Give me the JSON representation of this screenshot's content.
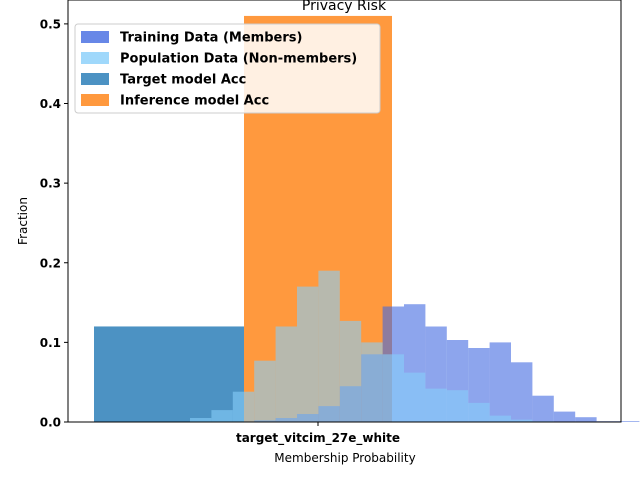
{
  "chart_data": {
    "type": "bar",
    "title": "Privacy Risk",
    "xlabel": "Membership Probability",
    "ylabel": "Fraction",
    "xtick_label": "target_vitcim_27e_white",
    "ylim": [
      0,
      0.53
    ],
    "yticks": [
      "0.0",
      "0.1",
      "0.2",
      "0.3",
      "0.4",
      "0.5"
    ],
    "ytick_values": [
      0,
      0.1,
      0.2,
      0.3,
      0.4,
      0.5
    ],
    "legend_position": "top-left",
    "legend": [
      {
        "label": "Training Data (Members)",
        "color": "#4169e1"
      },
      {
        "label": "Population Data (Non-members)",
        "color": "#87cefa"
      },
      {
        "label": "Target model Acc",
        "color": "#1f77b4"
      },
      {
        "label": "Inference model Acc",
        "color": "#ff7f0e"
      }
    ],
    "bars": [
      {
        "name": "Target model Acc",
        "value": 0.12,
        "color": "#1f77b4"
      },
      {
        "name": "Inference model Acc",
        "value": 0.51,
        "color": "#ff7f0e"
      }
    ],
    "histograms": [
      {
        "name": "Training Data (Members)",
        "color": "#4169e1",
        "values": [
          0,
          0,
          0,
          0.002,
          0.005,
          0.01,
          0.02,
          0.045,
          0.085,
          0.145,
          0.148,
          0.12,
          0.103,
          0.093,
          0.1,
          0.075,
          0.033,
          0.013,
          0.006,
          0.001,
          0.001
        ]
      },
      {
        "name": "Population Data (Non-members)",
        "color": "#87cefa",
        "values": [
          0.005,
          0.015,
          0.038,
          0.077,
          0.12,
          0.17,
          0.19,
          0.127,
          0.1,
          0.085,
          0.062,
          0.042,
          0.04,
          0.024,
          0.008,
          0.003,
          0.001,
          0,
          0,
          0,
          0
        ]
      }
    ]
  }
}
